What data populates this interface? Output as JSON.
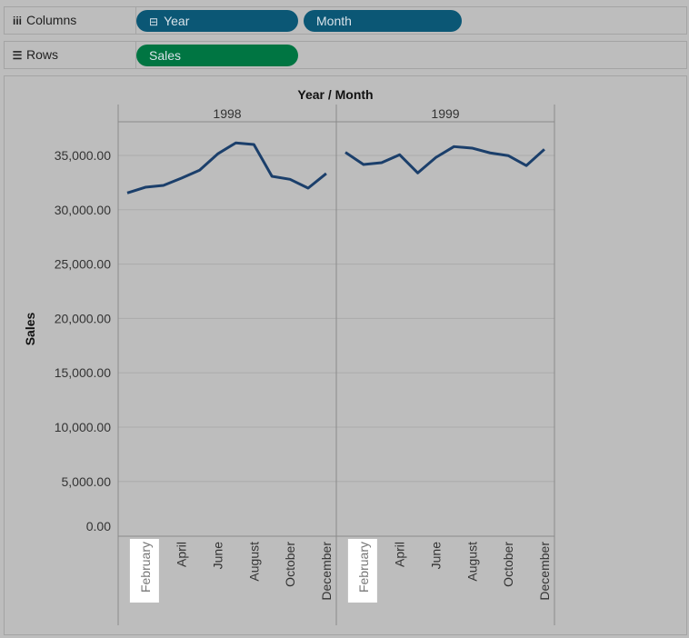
{
  "shelves": {
    "columns": {
      "label": "Columns",
      "icon": "columns-icon",
      "pills": [
        {
          "label": "Year",
          "icon": "collapse-icon",
          "color": "#0b5775"
        },
        {
          "label": "Month",
          "color": "#0b5775"
        }
      ]
    },
    "rows": {
      "label": "Rows",
      "icon": "rows-icon",
      "pills": [
        {
          "label": "Sales",
          "color": "#007542"
        }
      ]
    }
  },
  "chart_data": {
    "type": "line",
    "title": "Year / Month",
    "ylabel": "Sales",
    "ylim": [
      0,
      38000
    ],
    "yticks": [
      "0.00",
      "5,000.00",
      "10,000.00",
      "15,000.00",
      "20,000.00",
      "25,000.00",
      "30,000.00",
      "35,000.00"
    ],
    "ytick_values": [
      0,
      5000,
      10000,
      15000,
      20000,
      25000,
      30000,
      35000
    ],
    "grid": true,
    "line_color": "#1b3f6b",
    "month_labels": [
      "February",
      "April",
      "June",
      "August",
      "October",
      "December"
    ],
    "highlighted_label": "February",
    "panes": [
      {
        "year": "1998",
        "values": [
          31550,
          32070,
          32240,
          32910,
          33640,
          35140,
          36150,
          36000,
          33080,
          32800,
          31990,
          33330
        ]
      },
      {
        "year": "1999",
        "values": [
          35280,
          34160,
          34330,
          35060,
          33390,
          34810,
          35810,
          35670,
          35230,
          34980,
          34060,
          35560
        ]
      }
    ]
  }
}
